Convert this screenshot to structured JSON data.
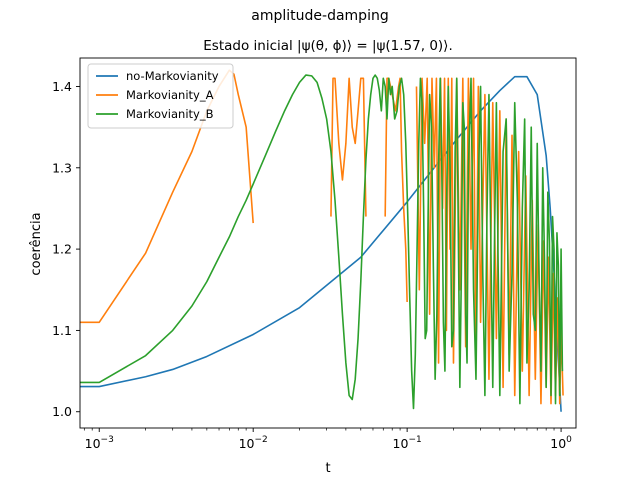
{
  "chart_data": {
    "type": "line",
    "suptitle": "amplitude-damping",
    "title": "Estado inicial |ψ(θ, ϕ)⟩ = |ψ(1.57, 0)⟩.",
    "xlabel": "t",
    "ylabel": "coerência",
    "xscale": "log",
    "xlim": [
      0.00075,
      1.25
    ],
    "ylim": [
      0.98,
      1.435
    ],
    "yticks": [
      1.0,
      1.1,
      1.2,
      1.3,
      1.4
    ],
    "ytick_labels": [
      "1.0",
      "1.1",
      "1.2",
      "1.3",
      "1.4"
    ],
    "xticks": [
      0.001,
      0.01,
      0.1,
      1
    ],
    "xtick_labels": [
      "10−3",
      "10−2",
      "10−1",
      "100"
    ],
    "legend_position": "top-left",
    "colors": {
      "blue": "#1f77b4",
      "orange": "#ff7f0e",
      "green": "#2ca02c"
    },
    "series": [
      {
        "name": "no-Markovianity",
        "color": "#1f77b4",
        "x": [
          0.0007,
          0.001,
          0.002,
          0.003,
          0.005,
          0.01,
          0.02,
          0.05,
          0.1,
          0.2,
          0.3,
          0.4,
          0.5,
          0.6,
          0.7,
          0.8,
          0.85,
          0.9,
          0.95,
          1.0
        ],
        "y": [
          1.031,
          1.031,
          1.043,
          1.052,
          1.068,
          1.095,
          1.128,
          1.19,
          1.258,
          1.33,
          1.37,
          1.395,
          1.412,
          1.412,
          1.39,
          1.315,
          1.25,
          1.17,
          1.08,
          1.0
        ]
      },
      {
        "name": "Markovianity_A",
        "color": "#ff7f0e",
        "segments": [
          {
            "x": [
              0.0007,
              0.001,
              0.002,
              0.003,
              0.004,
              0.005,
              0.006,
              0.007,
              0.0075,
              0.008,
              0.009,
              0.01
            ],
            "y": [
              1.11,
              1.11,
              1.195,
              1.27,
              1.32,
              1.37,
              1.4,
              1.42,
              1.415,
              1.39,
              1.35,
              1.232
            ]
          },
          {
            "x": [
              0.032,
              0.033,
              0.034,
              0.036,
              0.038,
              0.04,
              0.042,
              0.044,
              0.046,
              0.048,
              0.05,
              0.052,
              0.054
            ],
            "y": [
              1.24,
              1.41,
              1.41,
              1.33,
              1.285,
              1.33,
              1.41,
              1.35,
              1.33,
              1.37,
              1.41,
              1.41,
              1.24
            ]
          },
          {
            "x": [
              0.072,
              0.074,
              0.076,
              0.08,
              0.084,
              0.088,
              0.09,
              0.092,
              0.095,
              0.098,
              0.1
            ],
            "y": [
              1.24,
              1.41,
              1.41,
              1.39,
              1.37,
              1.4,
              1.41,
              1.32,
              1.25,
              1.2,
              1.135
            ]
          },
          {
            "x": [
              0.115,
              0.12,
              0.125,
              0.13,
              0.135,
              0.14,
              0.145,
              0.15,
              0.155,
              0.16,
              0.165,
              0.17,
              0.175,
              0.18,
              0.185,
              0.19,
              0.195,
              0.2,
              0.21,
              0.22,
              0.23,
              0.24,
              0.25,
              0.26,
              0.27,
              0.28,
              0.29,
              0.3,
              0.32,
              0.34,
              0.36,
              0.38,
              0.4,
              0.42,
              0.44,
              0.46,
              0.48,
              0.5,
              0.53,
              0.56,
              0.59,
              0.62,
              0.65,
              0.68,
              0.71,
              0.74,
              0.77,
              0.8,
              0.83,
              0.86,
              0.89,
              0.92,
              0.95,
              0.98,
              1.0,
              1.03
            ],
            "y": [
              1.4,
              1.15,
              1.41,
              1.33,
              1.41,
              1.12,
              1.41,
              1.3,
              1.41,
              1.06,
              1.41,
              1.25,
              1.41,
              1.1,
              1.41,
              1.2,
              1.41,
              1.06,
              1.41,
              1.15,
              1.41,
              1.08,
              1.41,
              1.2,
              1.41,
              1.06,
              1.4,
              1.11,
              1.39,
              1.04,
              1.38,
              1.09,
              1.37,
              1.03,
              1.36,
              1.07,
              1.34,
              1.02,
              1.32,
              1.05,
              1.29,
              1.02,
              1.26,
              1.04,
              1.23,
              1.01,
              1.21,
              1.03,
              1.19,
              1.01,
              1.17,
              1.02,
              1.14,
              1.01,
              1.1,
              1.02
            ]
          }
        ]
      },
      {
        "name": "Markovianity_B",
        "color": "#2ca02c",
        "x": [
          0.0007,
          0.001,
          0.002,
          0.003,
          0.004,
          0.005,
          0.006,
          0.007,
          0.008,
          0.009,
          0.01,
          0.012,
          0.014,
          0.016,
          0.018,
          0.02,
          0.022,
          0.024,
          0.026,
          0.028,
          0.03,
          0.032,
          0.034,
          0.036,
          0.038,
          0.04,
          0.042,
          0.044,
          0.046,
          0.048,
          0.05,
          0.052,
          0.054,
          0.056,
          0.058,
          0.06,
          0.062,
          0.064,
          0.066,
          0.068,
          0.07,
          0.072,
          0.074,
          0.076,
          0.078,
          0.08,
          0.083,
          0.086,
          0.089,
          0.092,
          0.095,
          0.098,
          0.101,
          0.104,
          0.107,
          0.11,
          0.113,
          0.116,
          0.119,
          0.122,
          0.125,
          0.128,
          0.131,
          0.134,
          0.137,
          0.14,
          0.144,
          0.148,
          0.152,
          0.156,
          0.16,
          0.164,
          0.168,
          0.172,
          0.176,
          0.18,
          0.185,
          0.19,
          0.195,
          0.2,
          0.205,
          0.21,
          0.215,
          0.22,
          0.225,
          0.23,
          0.235,
          0.24,
          0.245,
          0.25,
          0.26,
          0.27,
          0.28,
          0.29,
          0.3,
          0.31,
          0.32,
          0.33,
          0.34,
          0.35,
          0.36,
          0.37,
          0.38,
          0.39,
          0.4,
          0.42,
          0.44,
          0.46,
          0.48,
          0.5,
          0.52,
          0.54,
          0.56,
          0.58,
          0.6,
          0.62,
          0.64,
          0.66,
          0.68,
          0.7,
          0.72,
          0.74,
          0.76,
          0.78,
          0.8,
          0.82,
          0.84,
          0.86,
          0.88,
          0.9,
          0.92,
          0.94,
          0.96,
          0.98,
          1.0,
          1.02
        ],
        "y": [
          1.036,
          1.036,
          1.069,
          1.1,
          1.13,
          1.16,
          1.19,
          1.215,
          1.24,
          1.26,
          1.28,
          1.315,
          1.345,
          1.37,
          1.39,
          1.405,
          1.414,
          1.413,
          1.405,
          1.385,
          1.36,
          1.32,
          1.26,
          1.19,
          1.12,
          1.06,
          1.02,
          1.015,
          1.04,
          1.09,
          1.16,
          1.24,
          1.31,
          1.36,
          1.39,
          1.41,
          1.414,
          1.41,
          1.395,
          1.37,
          1.41,
          1.4,
          1.36,
          1.41,
          1.39,
          1.4,
          1.36,
          1.37,
          1.4,
          1.41,
          1.39,
          1.33,
          1.24,
          1.14,
          1.05,
          1.004,
          1.07,
          1.2,
          1.33,
          1.41,
          1.38,
          1.25,
          1.09,
          1.1,
          1.25,
          1.39,
          1.35,
          1.18,
          1.04,
          1.12,
          1.3,
          1.41,
          1.3,
          1.11,
          1.05,
          1.24,
          1.4,
          1.3,
          1.08,
          1.1,
          1.32,
          1.41,
          1.22,
          1.03,
          1.17,
          1.38,
          1.35,
          1.12,
          1.06,
          1.3,
          1.41,
          1.15,
          1.04,
          1.28,
          1.4,
          1.17,
          1.02,
          1.24,
          1.39,
          1.2,
          1.03,
          1.22,
          1.38,
          1.18,
          1.02,
          1.32,
          1.36,
          1.05,
          1.17,
          1.38,
          1.26,
          1.01,
          1.25,
          1.36,
          1.06,
          1.15,
          1.35,
          1.12,
          1.1,
          1.33,
          1.16,
          1.05,
          1.3,
          1.19,
          1.03,
          1.27,
          1.21,
          1.02,
          1.24,
          1.2,
          1.01,
          1.22,
          1.18,
          1.02,
          1.2,
          1.05
        ]
      }
    ]
  }
}
